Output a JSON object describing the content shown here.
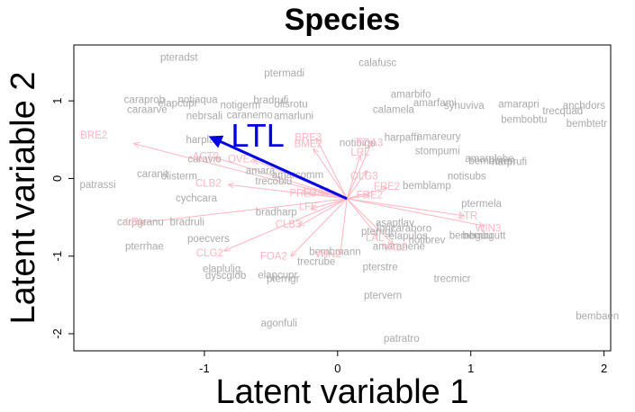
{
  "chart_data": {
    "type": "scatter",
    "title": "Species",
    "xlabel": "Latent variable 1",
    "ylabel": "Latent variable 2",
    "xlim": [
      -1.98,
      2.05
    ],
    "ylim": [
      -2.22,
      1.72
    ],
    "xticks": [
      -1,
      0,
      1,
      2
    ],
    "yticks": [
      -2,
      -1,
      0,
      1
    ],
    "grid": false,
    "legend": "none",
    "colors": {
      "species": "#aaaaaa",
      "variables": "#ffb6c1",
      "highlight": "#0000e6"
    },
    "arrow_origin": [
      0.07,
      -0.26
    ],
    "species_points": [
      {
        "label": "pteradst",
        "x": -1.19,
        "y": 1.55
      },
      {
        "label": "calafusc",
        "x": 0.3,
        "y": 1.48
      },
      {
        "label": "ptermadi",
        "x": -0.4,
        "y": 1.35
      },
      {
        "label": "amarbifo",
        "x": 0.55,
        "y": 1.08
      },
      {
        "label": "caraprob",
        "x": -1.45,
        "y": 1.01
      },
      {
        "label": "notiaqua",
        "x": -1.05,
        "y": 1.01
      },
      {
        "label": "bradrufi",
        "x": -0.5,
        "y": 1.0
      },
      {
        "label": "amarfami",
        "x": 0.73,
        "y": 0.97
      },
      {
        "label": "synuviva",
        "x": 0.95,
        "y": 0.93
      },
      {
        "label": "amarapri",
        "x": 1.36,
        "y": 0.95
      },
      {
        "label": "anchdors",
        "x": 1.85,
        "y": 0.93
      },
      {
        "label": "elapcupr",
        "x": -1.2,
        "y": 0.96
      },
      {
        "label": "notigerm",
        "x": -0.73,
        "y": 0.94
      },
      {
        "label": "olisrotu",
        "x": -0.35,
        "y": 0.95
      },
      {
        "label": "caraarve",
        "x": -1.43,
        "y": 0.88
      },
      {
        "label": "calamela",
        "x": 0.42,
        "y": 0.88
      },
      {
        "label": "trecquad",
        "x": 1.69,
        "y": 0.86
      },
      {
        "label": "nebrsali",
        "x": -1.0,
        "y": 0.8
      },
      {
        "label": "caranemo",
        "x": -0.66,
        "y": 0.81
      },
      {
        "label": "amarluni",
        "x": -0.33,
        "y": 0.8
      },
      {
        "label": "bembobtu",
        "x": 1.4,
        "y": 0.75
      },
      {
        "label": "bembtetr",
        "x": 1.87,
        "y": 0.7
      },
      {
        "label": "harpaffi",
        "x": 0.48,
        "y": 0.52
      },
      {
        "label": "harpla",
        "x": -1.03,
        "y": 0.49
      },
      {
        "label": "notibigu",
        "x": 0.15,
        "y": 0.45
      },
      {
        "label": "amareury",
        "x": 0.76,
        "y": 0.53
      },
      {
        "label": "stompumi",
        "x": 0.75,
        "y": 0.35
      },
      {
        "label": "amarplebe",
        "x": 1.14,
        "y": 0.25
      },
      {
        "label": "harprufi",
        "x": 1.29,
        "y": 0.21
      },
      {
        "label": "bembbrun",
        "x": 1.16,
        "y": 0.22
      },
      {
        "label": "amarcomm",
        "x": -0.3,
        "y": 0.04
      },
      {
        "label": "amara",
        "x": -0.58,
        "y": 0.09
      },
      {
        "label": "caranit",
        "x": -1.39,
        "y": 0.05
      },
      {
        "label": "olisterm",
        "x": -1.19,
        "y": 0.02
      },
      {
        "label": "caravio",
        "x": -1.0,
        "y": 0.24
      },
      {
        "label": "trecoblu",
        "x": -0.48,
        "y": -0.04
      },
      {
        "label": "notisubs",
        "x": 0.97,
        "y": 0.02
      },
      {
        "label": "bemblamp",
        "x": 0.67,
        "y": -0.1
      },
      {
        "label": "patrassi",
        "x": -1.8,
        "y": -0.09
      },
      {
        "label": "cychcara",
        "x": -1.06,
        "y": -0.26
      },
      {
        "label": "ptermela",
        "x": 1.08,
        "y": -0.33
      },
      {
        "label": "bradharp",
        "x": -0.46,
        "y": -0.44
      },
      {
        "label": "carpgranu",
        "x": -1.48,
        "y": -0.57
      },
      {
        "label": "bradruli",
        "x": -1.13,
        "y": -0.57
      },
      {
        "label": "asaptlav",
        "x": 0.43,
        "y": -0.58
      },
      {
        "label": "loricaraboro",
        "x": 0.5,
        "y": -0.65
      },
      {
        "label": "pterrigr",
        "x": 0.3,
        "y": -0.69
      },
      {
        "label": "elapulos",
        "x": 0.53,
        "y": -0.75
      },
      {
        "label": "notibrev",
        "x": 0.67,
        "y": -0.8
      },
      {
        "label": "bembguu",
        "x": 1.0,
        "y": -0.74
      },
      {
        "label": "bembgutt",
        "x": 1.1,
        "y": -0.74
      },
      {
        "label": "poecvers",
        "x": -0.97,
        "y": -0.78
      },
      {
        "label": "pterrhae",
        "x": -1.45,
        "y": -0.88
      },
      {
        "label": "amaranene",
        "x": 0.46,
        "y": -0.88
      },
      {
        "label": "bembmann",
        "x": -0.02,
        "y": -0.95
      },
      {
        "label": "trecrube",
        "x": -0.16,
        "y": -1.08
      },
      {
        "label": "pterstre",
        "x": 0.32,
        "y": -1.15
      },
      {
        "label": "elaplulig",
        "x": -0.87,
        "y": -1.17
      },
      {
        "label": "dyscglob",
        "x": -0.84,
        "y": -1.26
      },
      {
        "label": "elapcupr",
        "x": -0.45,
        "y": -1.25
      },
      {
        "label": "pterrigr",
        "x": -0.41,
        "y": -1.3
      },
      {
        "label": "trecmicr",
        "x": 0.86,
        "y": -1.3
      },
      {
        "label": "ptervern",
        "x": 0.34,
        "y": -1.51
      },
      {
        "label": "agonfuli",
        "x": -0.44,
        "y": -1.87
      },
      {
        "label": "bembaen",
        "x": 1.95,
        "y": -1.78
      },
      {
        "label": "patratro",
        "x": 0.48,
        "y": -2.07
      }
    ],
    "variable_arrows": [
      {
        "label": "BRE2",
        "x": -1.53,
        "y": 0.45,
        "lx": -1.83,
        "ly": 0.55
      },
      {
        "label": "BRE3",
        "x": -0.16,
        "y": 0.52,
        "lx": -0.22,
        "ly": 0.52
      },
      {
        "label": "BME2",
        "x": -0.18,
        "y": 0.38,
        "lx": -0.22,
        "ly": 0.44
      },
      {
        "label": "FOA3",
        "x": 0.26,
        "y": 0.48,
        "lx": 0.24,
        "ly": 0.45
      },
      {
        "label": "LRL",
        "x": 0.17,
        "y": 0.3,
        "lx": 0.17,
        "ly": 0.33
      },
      {
        "label": "ACT2",
        "x": -0.92,
        "y": 0.27,
        "lx": -0.99,
        "ly": 0.28
      },
      {
        "label": "OVE2",
        "x": -0.63,
        "y": 0.24,
        "lx": -0.72,
        "ly": 0.24
      },
      {
        "label": "OLG3",
        "x": 0.22,
        "y": 0.1,
        "lx": 0.2,
        "ly": 0.02
      },
      {
        "label": "CLB2",
        "x": -0.82,
        "y": -0.08,
        "lx": -0.97,
        "ly": -0.07
      },
      {
        "label": "FRE2",
        "x": 0.37,
        "y": -0.12,
        "lx": 0.37,
        "ly": -0.11
      },
      {
        "label": "PRE3",
        "x": -0.22,
        "y": -0.19,
        "lx": -0.26,
        "ly": -0.2
      },
      {
        "label": "FOA3",
        "x": -0.13,
        "y": -0.18,
        "lx": -0.16,
        "ly": -0.18
      },
      {
        "label": "FRE2",
        "x": 0.24,
        "y": -0.22,
        "lx": 0.24,
        "ly": -0.22
      },
      {
        "label": "LFE",
        "x": -0.2,
        "y": -0.39,
        "lx": -0.22,
        "ly": -0.37
      },
      {
        "label": "LTR",
        "x": 0.95,
        "y": -0.48,
        "lx": 0.98,
        "ly": -0.49
      },
      {
        "label": "CLB3",
        "x": -0.29,
        "y": -0.61,
        "lx": -0.37,
        "ly": -0.6
      },
      {
        "label": "LRL",
        "x": -1.48,
        "y": -0.57,
        "lx": -1.52,
        "ly": -0.57
      },
      {
        "label": "WIN3",
        "x": 1.1,
        "y": -0.61,
        "lx": 1.13,
        "ly": -0.65
      },
      {
        "label": "LAL",
        "x": 0.3,
        "y": -0.74,
        "lx": 0.28,
        "ly": -0.77
      },
      {
        "label": "VAL2",
        "x": 0.42,
        "y": -0.85,
        "lx": 0.43,
        "ly": -0.89
      },
      {
        "label": "CLG2",
        "x": -0.85,
        "y": -0.93,
        "lx": -0.96,
        "ly": -0.97
      },
      {
        "label": "FOA2",
        "x": -0.35,
        "y": -1.0,
        "lx": -0.48,
        "ly": -1.01
      },
      {
        "label": "WIN2",
        "x": 0.02,
        "y": -0.98,
        "lx": -0.07,
        "ly": -0.98
      }
    ],
    "highlighted_arrow": {
      "label": "LTL",
      "x": -0.95,
      "y": 0.53,
      "lx": -0.6,
      "ly": 0.52
    }
  }
}
